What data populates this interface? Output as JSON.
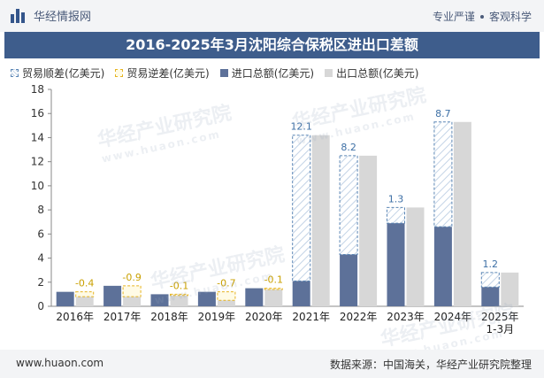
{
  "header": {
    "brand": "华经情报网",
    "tag1": "专业严谨",
    "tag2": "客观科学"
  },
  "title": "2016-2025年3月沈阳综合保税区进出口差额",
  "legend": {
    "surplus": "贸易顺差(亿美元)",
    "deficit": "贸易逆差(亿美元)",
    "import": "进口总额(亿美元)",
    "export": "出口总额(亿美元)"
  },
  "watermark": {
    "text": "华经产业研究院",
    "sub": "www.huaon.com"
  },
  "footer": {
    "website": "www.huaon.com",
    "source": "数据来源：中国海关，华经产业研究院整理"
  },
  "colors": {
    "import": "#5d7199",
    "export": "#d7d7d7",
    "surplus_stroke": "#5b86b5",
    "deficit_stroke": "#e6b422",
    "surplus_label": "#3d6fa5",
    "deficit_label": "#c9a000"
  },
  "chart_data": {
    "type": "bar",
    "categories": [
      "2016年",
      "2017年",
      "2018年",
      "2019年",
      "2020年",
      "2021年",
      "2022年",
      "2023年",
      "2024年",
      "2025年\n1-3月"
    ],
    "series": [
      {
        "name": "进口总额(亿美元)",
        "values": [
          1.2,
          1.7,
          1.0,
          1.2,
          1.5,
          2.1,
          4.3,
          6.9,
          6.6,
          1.6
        ]
      },
      {
        "name": "出口总额(亿美元)",
        "values": [
          0.8,
          0.8,
          0.9,
          0.5,
          1.4,
          14.2,
          12.5,
          8.2,
          15.3,
          2.8
        ]
      }
    ],
    "balance": [
      -0.4,
      -0.9,
      -0.1,
      -0.7,
      -0.1,
      12.1,
      8.2,
      1.3,
      8.7,
      1.2
    ],
    "balance_labels": [
      "-0.4",
      "-0.9",
      "-0.1",
      "-0.7",
      "-0.1",
      "12.1",
      "8.2",
      "1.3",
      "8.7",
      "1.2"
    ],
    "y_ticks": [
      "0",
      "2",
      "4",
      "6",
      "8",
      "10",
      "12",
      "14",
      "16",
      "18"
    ],
    "ylim": [
      0,
      18
    ]
  }
}
